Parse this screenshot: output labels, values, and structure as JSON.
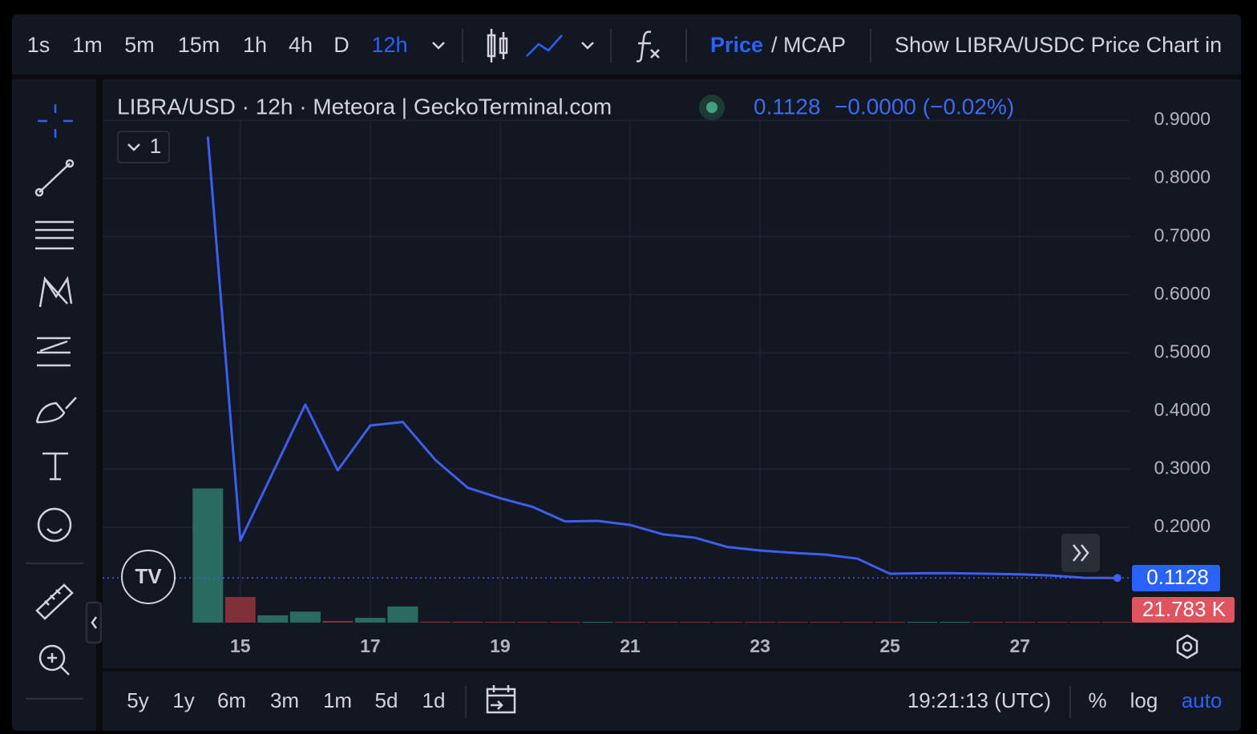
{
  "toolbar": {
    "intervals": [
      "1s",
      "1m",
      "5m",
      "15m",
      "1h",
      "4h",
      "D",
      "12h"
    ],
    "price": "Price",
    "mcap": "/ MCAP",
    "show_chart": "Show LIBRA/USDC Price Chart in"
  },
  "chart_data": {
    "type": "line",
    "title": "LIBRA/USD · 12h · Meteora | GeckoTerminal.com",
    "legend": {
      "price": "0.1128",
      "change": "−0.0000 (−0.02%)",
      "count": "1"
    },
    "x": [
      14.5,
      15,
      15.5,
      16,
      16.5,
      17,
      17.5,
      18,
      18.5,
      19,
      19.5,
      20,
      20.5,
      21,
      21.5,
      22,
      22.5,
      23,
      23.5,
      24,
      24.5,
      25,
      25.5,
      26,
      26.5,
      27,
      27.5,
      28,
      28.5
    ],
    "series": [
      {
        "name": "LIBRA/USD",
        "color": "#3d5ef0",
        "values": [
          0.872,
          0.177,
          0.294,
          0.411,
          0.298,
          0.375,
          0.381,
          0.316,
          0.268,
          0.25,
          0.235,
          0.21,
          0.211,
          0.204,
          0.188,
          0.182,
          0.166,
          0.16,
          0.156,
          0.153,
          0.146,
          0.12,
          0.121,
          0.121,
          0.12,
          0.119,
          0.117,
          0.113,
          0.1128
        ]
      }
    ],
    "volume": {
      "values": [
        3660,
        700,
        200,
        300,
        45,
        130,
        440,
        25,
        25,
        20,
        20,
        20,
        22,
        20,
        20,
        20,
        20,
        20,
        20,
        20,
        20,
        20,
        22,
        22,
        20,
        20,
        20,
        20,
        21.783
      ],
      "value_labels": [
        null,
        null,
        null,
        null,
        null,
        null,
        null,
        null,
        null,
        null,
        null,
        null,
        null,
        null,
        null,
        null,
        null,
        null,
        null,
        null,
        null,
        null,
        null,
        null,
        null,
        null,
        null,
        null,
        "21.783 K"
      ],
      "colors": [
        "#2b6b5f",
        "#803038",
        "#2b6b5f",
        "#2b6b5f",
        "#803038",
        "#2b6b5f",
        "#2b6b5f",
        "#803038",
        "#803038",
        "#803038",
        "#803038",
        "#803038",
        "#2b6b5f",
        "#803038",
        "#803038",
        "#803038",
        "#803038",
        "#803038",
        "#803038",
        "#803038",
        "#803038",
        "#803038",
        "#2b6b5f",
        "#2b6b5f",
        "#803038",
        "#803038",
        "#803038",
        "#803038",
        "#803038"
      ],
      "vlim": [
        0,
        4000
      ]
    },
    "xlim": [
      12.88,
      28.7
    ],
    "xticks": [
      15,
      17,
      19,
      21,
      23,
      25,
      27
    ],
    "ylim": [
      0.036,
      0.969
    ],
    "yticks": [
      {
        "value": 0.2,
        "label": "0.2000"
      },
      {
        "value": 0.3,
        "label": "0.3000"
      },
      {
        "value": 0.4,
        "label": "0.4000"
      },
      {
        "value": 0.5,
        "label": "0.5000"
      },
      {
        "value": 0.6,
        "label": "0.6000"
      },
      {
        "value": 0.7,
        "label": "0.7000"
      },
      {
        "value": 0.8,
        "label": "0.8000"
      },
      {
        "value": 0.9,
        "label": "0.9000"
      }
    ],
    "grid": true
  },
  "footer": {
    "ranges": [
      "5y",
      "1y",
      "6m",
      "3m",
      "1m",
      "5d",
      "1d"
    ],
    "time": "19:21:13 (UTC)",
    "percent": "%",
    "log": "log",
    "auto": "auto"
  }
}
